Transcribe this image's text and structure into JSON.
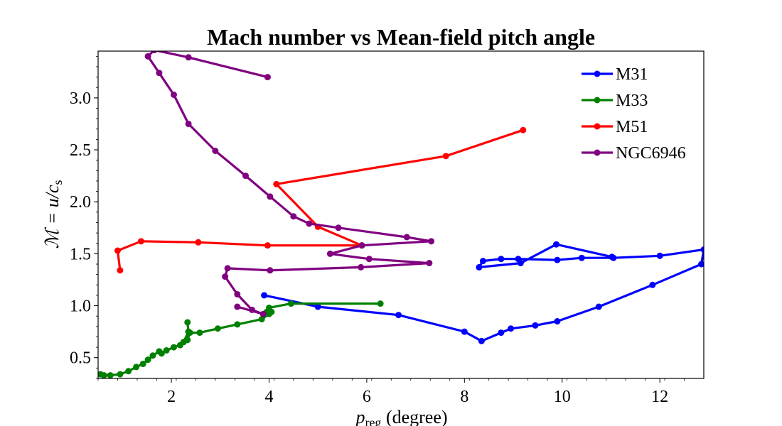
{
  "chart_data": {
    "type": "line",
    "title": "Mach number vs Mean-field pitch angle",
    "xlabel": {
      "main": "p",
      "sub": "reg",
      "rest": " (degree)"
    },
    "ylabel": {
      "part1": "ℳ = u/c",
      "sub": "s"
    },
    "xlim": [
      0.5,
      12.9
    ],
    "ylim": [
      0.3,
      3.45
    ],
    "xticks": [
      2,
      4,
      6,
      8,
      10,
      12
    ],
    "xtick_labels": [
      "2",
      "4",
      "6",
      "8",
      "10",
      "12"
    ],
    "yticks": [
      0.5,
      1.0,
      1.5,
      2.0,
      2.5,
      3.0
    ],
    "ytick_labels": [
      "0.5",
      "1.0",
      "1.5",
      "2.0",
      "2.5",
      "3.0"
    ],
    "grid": false,
    "legend_position": "top-right",
    "series": [
      {
        "name": "M31",
        "color": "#0000ff",
        "x": [
          3.9,
          5.0,
          6.65,
          8.0,
          8.35,
          8.75,
          8.95,
          9.45,
          9.9,
          10.75,
          11.85,
          12.85,
          12.9,
          12.0,
          11.05,
          10.4,
          9.9,
          9.1,
          8.75,
          8.38,
          8.3,
          9.15,
          9.88,
          11.02
        ],
        "y": [
          1.1,
          0.99,
          0.91,
          0.75,
          0.66,
          0.74,
          0.78,
          0.81,
          0.85,
          0.99,
          1.2,
          1.4,
          1.54,
          1.48,
          1.46,
          1.46,
          1.44,
          1.45,
          1.45,
          1.43,
          1.37,
          1.41,
          1.59,
          1.47
        ]
      },
      {
        "name": "M33",
        "color": "#008000",
        "x": [
          6.28,
          4.45,
          4.0,
          3.95,
          4.05,
          4.0,
          3.85,
          3.35,
          2.95,
          2.58,
          2.38,
          2.33,
          2.35,
          2.33,
          2.35,
          2.25,
          2.18,
          2.05,
          1.9,
          1.8,
          1.75,
          1.75,
          1.62,
          1.52,
          1.42,
          1.28,
          1.12,
          0.95,
          0.75,
          0.62,
          0.55
        ],
        "y": [
          1.02,
          1.02,
          0.98,
          0.94,
          0.94,
          0.92,
          0.87,
          0.82,
          0.78,
          0.74,
          0.74,
          0.67,
          0.75,
          0.84,
          0.75,
          0.65,
          0.62,
          0.6,
          0.57,
          0.54,
          0.56,
          0.56,
          0.52,
          0.48,
          0.44,
          0.41,
          0.37,
          0.34,
          0.33,
          0.33,
          0.34
        ]
      },
      {
        "name": "M51",
        "color": "#ff0000",
        "x": [
          9.2,
          7.62,
          4.15,
          5.0,
          5.9,
          3.97,
          2.55,
          1.38,
          0.9,
          0.95
        ],
        "y": [
          2.69,
          2.44,
          2.17,
          1.76,
          1.58,
          1.58,
          1.61,
          1.62,
          1.53,
          1.34
        ],
        "show_in_legend": true
      },
      {
        "name": "NGC6946",
        "color": "#800080",
        "x": [
          3.97,
          2.35,
          1.65,
          1.52,
          1.75,
          2.05,
          2.35,
          2.9,
          3.52,
          4.02,
          4.5,
          4.82,
          5.42,
          6.82,
          7.32,
          5.9,
          5.25,
          6.05,
          7.28,
          5.88,
          4.02,
          3.15,
          3.1,
          3.35,
          3.65,
          3.88,
          3.35
        ],
        "y": [
          3.2,
          3.39,
          3.46,
          3.4,
          3.24,
          3.03,
          2.75,
          2.49,
          2.25,
          2.05,
          1.86,
          1.79,
          1.75,
          1.66,
          1.62,
          1.58,
          1.5,
          1.45,
          1.41,
          1.37,
          1.34,
          1.36,
          1.28,
          1.11,
          0.96,
          0.92,
          0.99
        ]
      }
    ]
  }
}
